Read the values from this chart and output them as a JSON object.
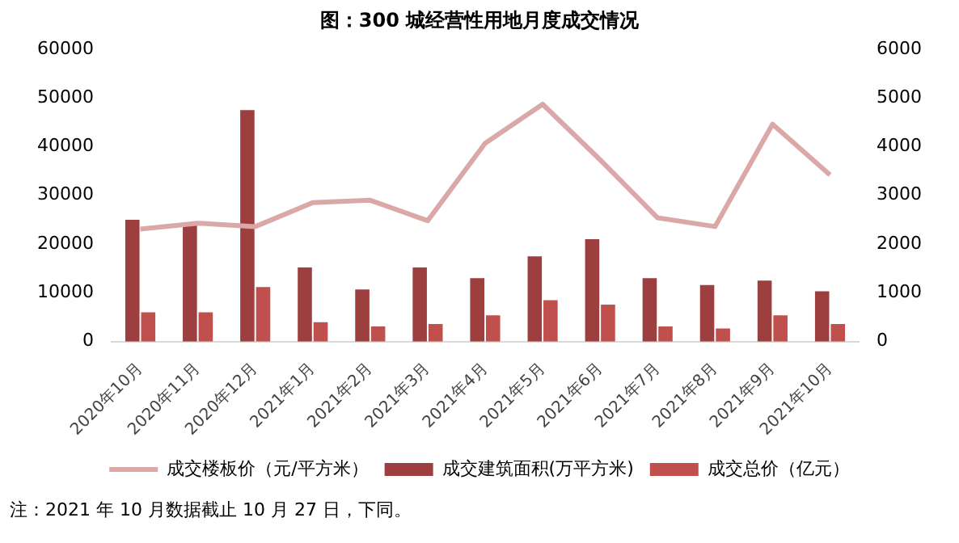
{
  "chart_data": {
    "type": "bar",
    "title": "图：300 城经营性用地月度成交情况",
    "categories": [
      "2020年10月",
      "2020年11月",
      "2020年12月",
      "2021年1月",
      "2021年2月",
      "2021年3月",
      "2021年4月",
      "2021年5月",
      "2021年6月",
      "2021年7月",
      "2021年8月",
      "2021年9月",
      "2021年10月"
    ],
    "series": [
      {
        "name": "成交建筑面积(万平方米)",
        "color": "#9e3f3f",
        "values": [
          25000,
          23900,
          47500,
          15200,
          10700,
          15200,
          13000,
          17500,
          21000,
          13000,
          11600,
          12500,
          10300
        ]
      },
      {
        "name": "成交总价（亿元）",
        "color": "#c0504d",
        "values": [
          6000,
          6000,
          11200,
          4000,
          3100,
          3600,
          5400,
          8500,
          7600,
          3100,
          2700,
          5400,
          3600
        ]
      },
      {
        "name": "成交楼板价（元/平方米）",
        "type": "line",
        "axis": "y2",
        "color": "#dba8a8",
        "values": [
          2310,
          2430,
          2360,
          2850,
          2900,
          2480,
          4070,
          4870,
          3730,
          2540,
          2360,
          4460,
          3420
        ]
      }
    ],
    "ylim": [
      0,
      60000
    ],
    "yticks": [
      0,
      10000,
      20000,
      30000,
      40000,
      50000,
      60000
    ],
    "y2lim": [
      0,
      6000
    ],
    "y2ticks": [
      0,
      1000,
      2000,
      3000,
      4000,
      5000,
      6000
    ],
    "grid": false,
    "legend": "bottom",
    "marker": "none",
    "line_style": "solid",
    "annotations": [
      "注：2021 年 10 月数据截止 10 月 27 日，下同。"
    ]
  }
}
